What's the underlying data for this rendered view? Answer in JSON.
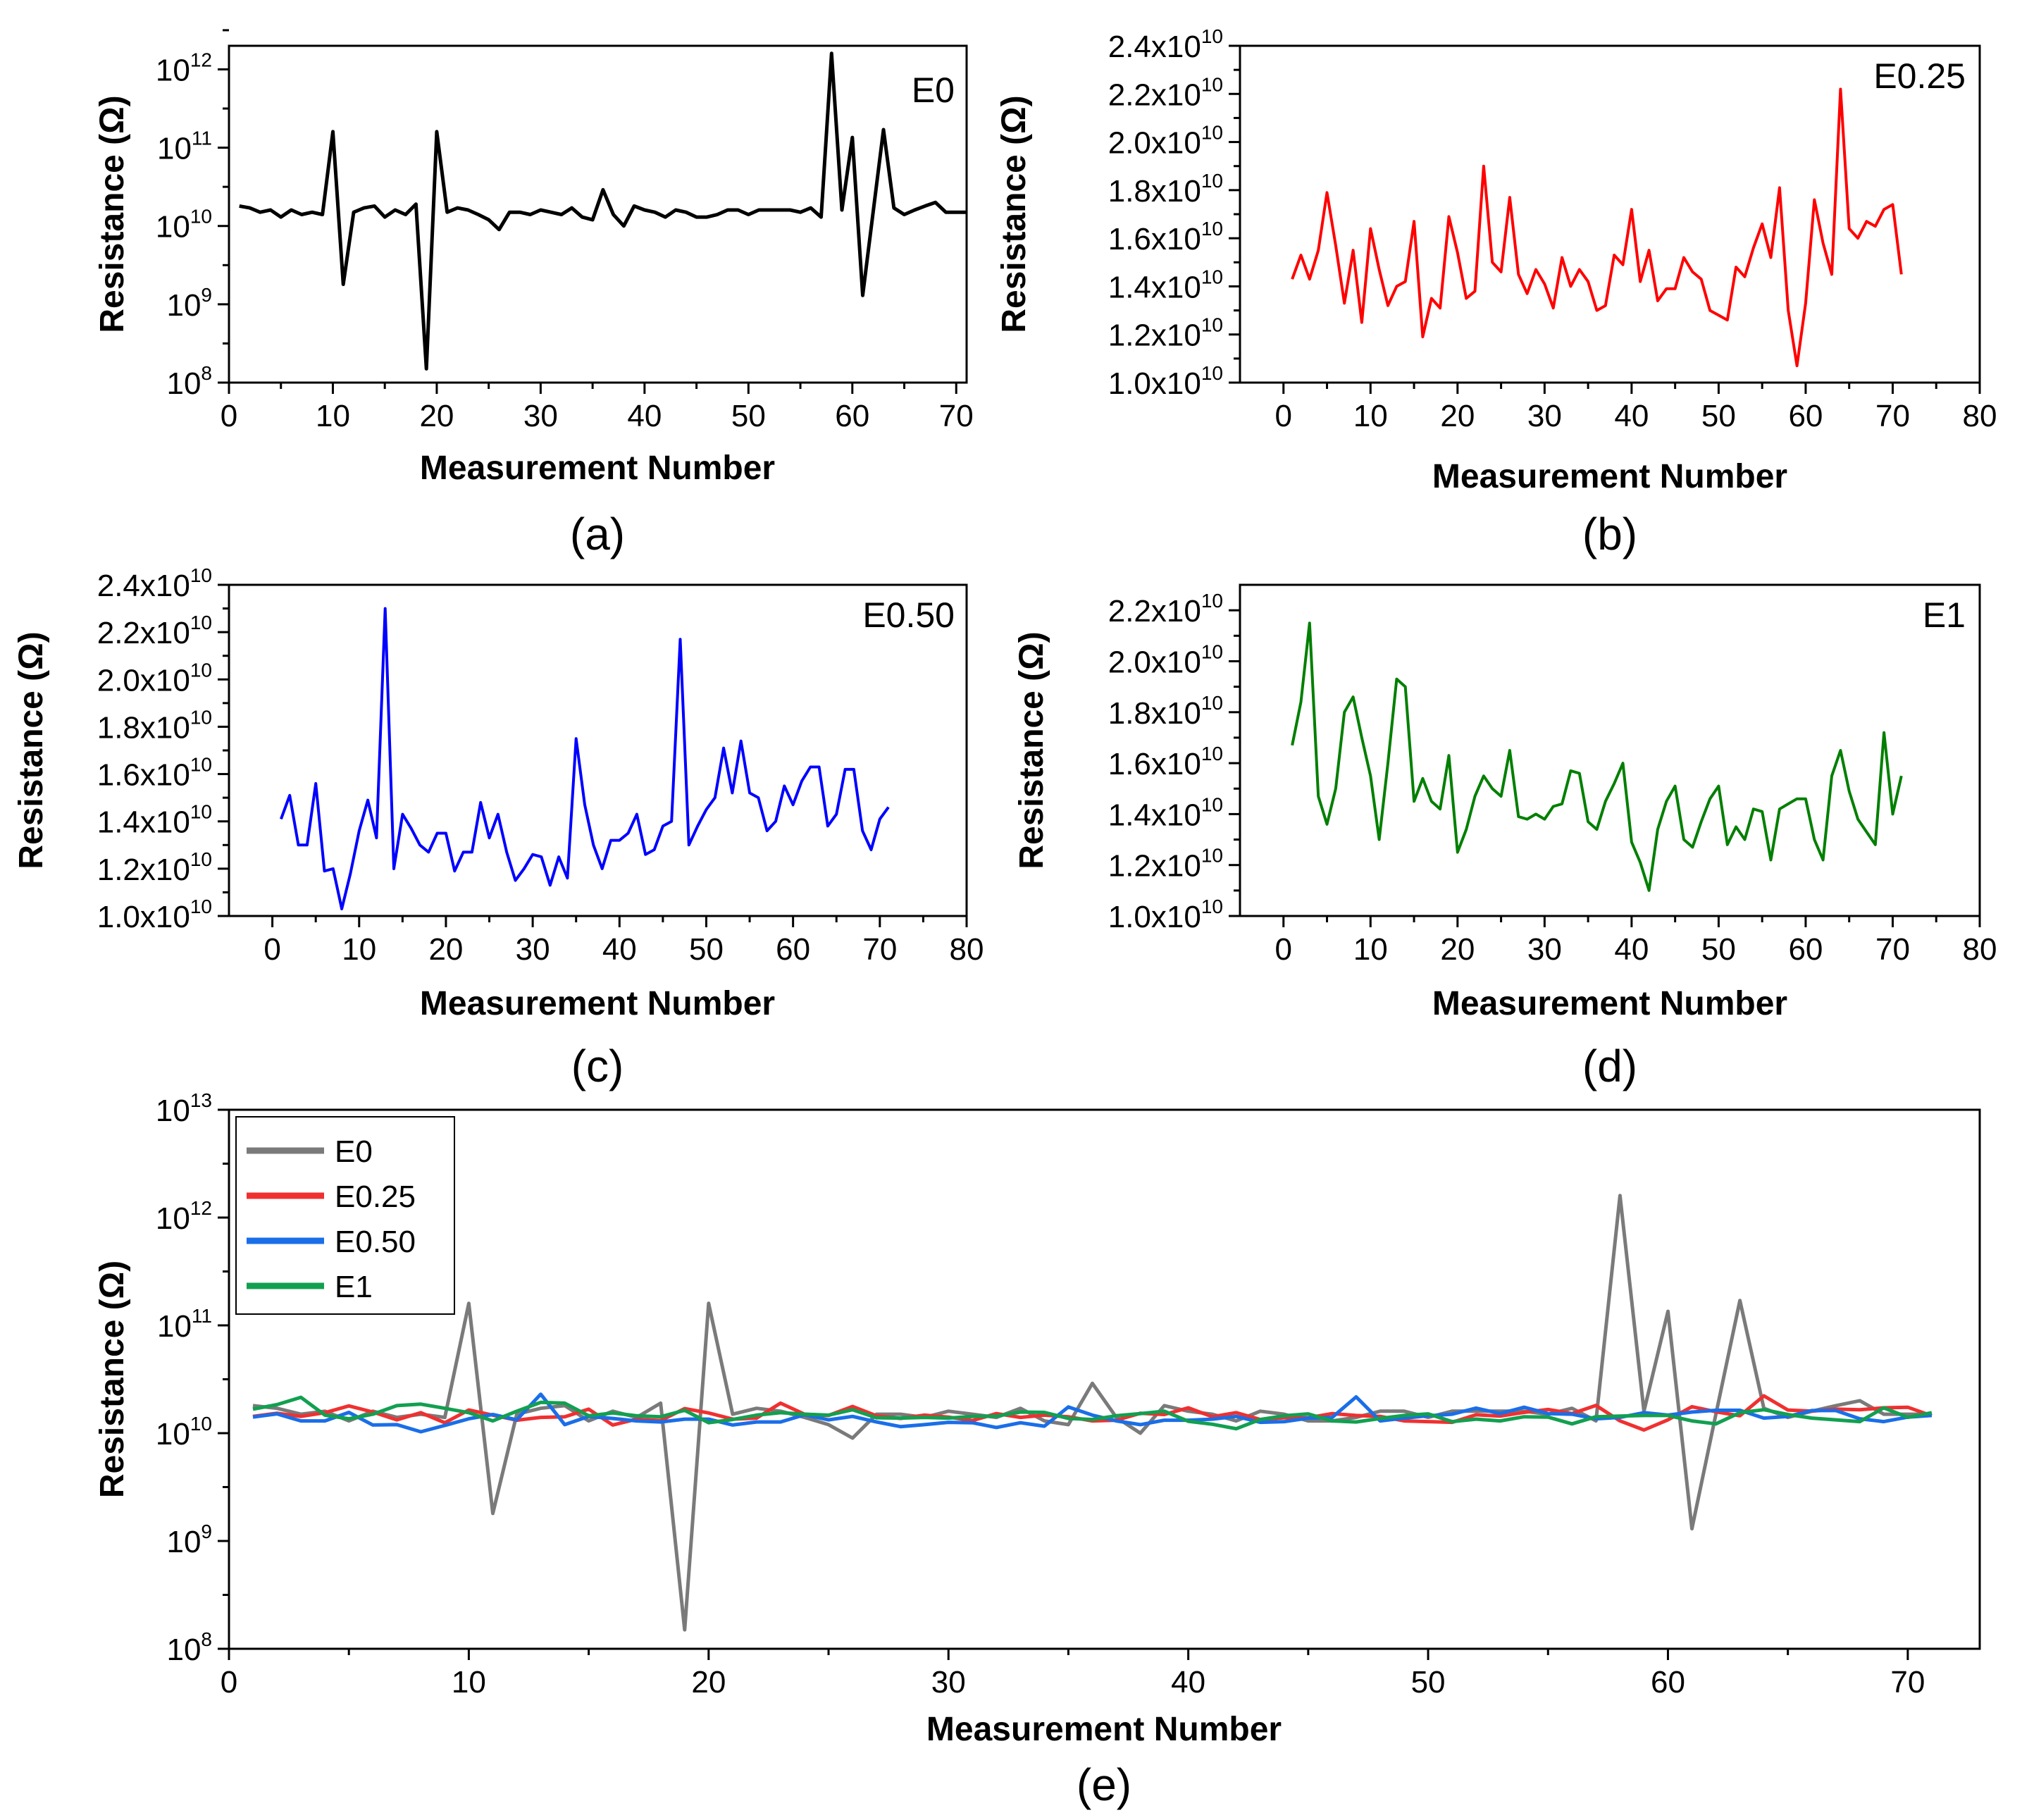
{
  "chart_data": [
    {
      "id": "a",
      "type": "line",
      "panel_label": "(a)",
      "inset_label": "E0",
      "xlabel": "Measurement Number",
      "ylabel": "Resistance (Ω)",
      "xlim": [
        0,
        71
      ],
      "ylim": [
        100000000.0,
        2000000000000.0
      ],
      "yscale": "log",
      "xticks": [
        0,
        10,
        20,
        30,
        40,
        50,
        60,
        70
      ],
      "yticks": [
        {
          "base": "10",
          "exp": "8",
          "value": 100000000.0
        },
        {
          "base": "10",
          "exp": "9",
          "value": 1000000000.0
        },
        {
          "base": "10",
          "exp": "10",
          "value": 10000000000.0
        },
        {
          "base": "10",
          "exp": "11",
          "value": 100000000000.0
        },
        {
          "base": "10",
          "exp": "12",
          "value": 1000000000000.0
        }
      ],
      "series": [
        {
          "color": "#000000",
          "x": [
            1,
            2,
            3,
            4,
            5,
            6,
            7,
            8,
            9,
            10,
            11,
            12,
            13,
            14,
            15,
            16,
            17,
            18,
            19,
            20,
            21,
            22,
            23,
            24,
            25,
            26,
            27,
            28,
            29,
            30,
            31,
            32,
            33,
            34,
            35,
            36,
            37,
            38,
            39,
            40,
            41,
            42,
            43,
            44,
            45,
            46,
            47,
            48,
            49,
            50,
            51,
            52,
            53,
            54,
            55,
            56,
            57,
            58,
            59,
            60,
            61,
            62,
            63,
            64,
            65,
            66,
            67,
            68,
            69,
            70,
            71
          ],
          "y": [
            18000000000.0,
            17000000000.0,
            15000000000.0,
            16000000000.0,
            13000000000.0,
            16000000000.0,
            14000000000.0,
            15000000000.0,
            14000000000.0,
            160000000000.0,
            1800000000.0,
            15000000000.0,
            17000000000.0,
            18000000000.0,
            13000000000.0,
            16000000000.0,
            14000000000.0,
            19000000000.0,
            150000000.0,
            160000000000.0,
            15000000000.0,
            17000000000.0,
            16000000000.0,
            14000000000.0,
            12000000000.0,
            9000000000.0,
            15000000000.0,
            15000000000.0,
            14000000000.0,
            16000000000.0,
            15000000000.0,
            14000000000.0,
            17000000000.0,
            13000000000.0,
            12000000000.0,
            29000000000.0,
            14000000000.0,
            10000000000.0,
            18000000000.0,
            16000000000.0,
            15000000000.0,
            13000000000.0,
            16000000000.0,
            15000000000.0,
            13000000000.0,
            13000000000.0,
            14000000000.0,
            16000000000.0,
            16000000000.0,
            14000000000.0,
            16000000000.0,
            16000000000.0,
            16000000000.0,
            16000000000.0,
            15000000000.0,
            17000000000.0,
            13000000000.0,
            1600000000000.0,
            16000000000.0,
            135000000000.0,
            1300000000.0,
            15000000000.0,
            170000000000.0,
            17000000000.0,
            14000000000.0,
            16000000000.0,
            18000000000.0,
            20000000000.0,
            15000000000.0,
            15000000000.0,
            15000000000.0
          ]
        }
      ]
    },
    {
      "id": "b",
      "type": "line",
      "panel_label": "(b)",
      "inset_label": "E0.25",
      "xlabel": "Measurement Number",
      "ylabel": "Resistance (Ω)",
      "xlim": [
        -5,
        80
      ],
      "ylim": [
        10000000000.0,
        24000000000.0
      ],
      "yscale": "linear",
      "xticks": [
        0,
        10,
        20,
        30,
        40,
        50,
        60,
        70,
        80
      ],
      "yticks": [
        {
          "mant": "1.0x10",
          "exp": "10",
          "value": 10000000000.0
        },
        {
          "mant": "1.2x10",
          "exp": "10",
          "value": 12000000000.0
        },
        {
          "mant": "1.4x10",
          "exp": "10",
          "value": 14000000000.0
        },
        {
          "mant": "1.6x10",
          "exp": "10",
          "value": 16000000000.0
        },
        {
          "mant": "1.8x10",
          "exp": "10",
          "value": 18000000000.0
        },
        {
          "mant": "2.0x10",
          "exp": "10",
          "value": 20000000000.0
        },
        {
          "mant": "2.2x10",
          "exp": "10",
          "value": 22000000000.0
        },
        {
          "mant": "2.4x10",
          "exp": "10",
          "value": 24000000000.0
        }
      ],
      "series": [
        {
          "color": "#ff0000",
          "x": [
            1,
            2,
            3,
            4,
            5,
            6,
            7,
            8,
            9,
            10,
            11,
            12,
            13,
            14,
            15,
            16,
            17,
            18,
            19,
            20,
            21,
            22,
            23,
            24,
            25,
            26,
            27,
            28,
            29,
            30,
            31,
            32,
            33,
            34,
            35,
            36,
            37,
            38,
            39,
            40,
            41,
            42,
            43,
            44,
            45,
            46,
            47,
            48,
            49,
            50,
            51,
            52,
            53,
            54,
            55,
            56,
            57,
            58,
            59,
            60,
            61,
            62,
            63,
            64,
            65,
            66,
            67,
            68,
            69,
            70,
            71
          ],
          "y": [
            14300000000.0,
            15300000000.0,
            14300000000.0,
            15500000000.0,
            17900000000.0,
            15700000000.0,
            13300000000.0,
            15500000000.0,
            12500000000.0,
            16400000000.0,
            14700000000.0,
            13200000000.0,
            14000000000.0,
            14200000000.0,
            16700000000.0,
            11900000000.0,
            13500000000.0,
            13100000000.0,
            16900000000.0,
            15400000000.0,
            13500000000.0,
            13800000000.0,
            19000000000.0,
            15000000000.0,
            14600000000.0,
            17700000000.0,
            14500000000.0,
            13700000000.0,
            14700000000.0,
            14100000000.0,
            13100000000.0,
            15200000000.0,
            14000000000.0,
            14700000000.0,
            14200000000.0,
            13000000000.0,
            13200000000.0,
            15300000000.0,
            14900000000.0,
            17200000000.0,
            14200000000.0,
            15500000000.0,
            13400000000.0,
            13900000000.0,
            13900000000.0,
            15200000000.0,
            14600000000.0,
            14300000000.0,
            13000000000.0,
            12800000000.0,
            12600000000.0,
            14800000000.0,
            14400000000.0,
            15600000000.0,
            16600000000.0,
            15200000000.0,
            18100000000.0,
            13000000000.0,
            10700000000.0,
            13300000000.0,
            17600000000.0,
            15800000000.0,
            14500000000.0,
            22200000000.0,
            16400000000.0,
            16000000000.0,
            16700000000.0,
            16500000000.0,
            17200000000.0,
            17400000000.0,
            14500000000.0
          ]
        }
      ]
    },
    {
      "id": "c",
      "type": "line",
      "panel_label": "(c)",
      "inset_label": "E0.50",
      "xlabel": "Measurement Number",
      "ylabel": "Resistance (Ω)",
      "xlim": [
        -5,
        80
      ],
      "ylim": [
        10000000000.0,
        24000000000.0
      ],
      "yscale": "linear",
      "xticks": [
        0,
        10,
        20,
        30,
        40,
        50,
        60,
        70,
        80
      ],
      "yticks": [
        {
          "mant": "1.0x10",
          "exp": "10",
          "value": 10000000000.0
        },
        {
          "mant": "1.2x10",
          "exp": "10",
          "value": 12000000000.0
        },
        {
          "mant": "1.4x10",
          "exp": "10",
          "value": 14000000000.0
        },
        {
          "mant": "1.6x10",
          "exp": "10",
          "value": 16000000000.0
        },
        {
          "mant": "1.8x10",
          "exp": "10",
          "value": 18000000000.0
        },
        {
          "mant": "2.0x10",
          "exp": "10",
          "value": 20000000000.0
        },
        {
          "mant": "2.2x10",
          "exp": "10",
          "value": 22000000000.0
        },
        {
          "mant": "2.4x10",
          "exp": "10",
          "value": 24000000000.0
        }
      ],
      "series": [
        {
          "color": "#0000ff",
          "x": [
            1,
            2,
            3,
            4,
            5,
            6,
            7,
            8,
            9,
            10,
            11,
            12,
            13,
            14,
            15,
            16,
            17,
            18,
            19,
            20,
            21,
            22,
            23,
            24,
            25,
            26,
            27,
            28,
            29,
            30,
            31,
            32,
            33,
            34,
            35,
            36,
            37,
            38,
            39,
            40,
            41,
            42,
            43,
            44,
            45,
            46,
            47,
            48,
            49,
            50,
            51,
            52,
            53,
            54,
            55,
            56,
            57,
            58,
            59,
            60,
            61,
            62,
            63,
            64,
            65,
            66,
            67,
            68,
            69,
            70,
            71
          ],
          "y": [
            14100000000.0,
            15100000000.0,
            13000000000.0,
            13000000000.0,
            15600000000.0,
            11900000000.0,
            12000000000.0,
            10300000000.0,
            11800000000.0,
            13600000000.0,
            14900000000.0,
            13300000000.0,
            23000000000.0,
            12000000000.0,
            14300000000.0,
            13700000000.0,
            13000000000.0,
            12700000000.0,
            13500000000.0,
            13500000000.0,
            11900000000.0,
            12700000000.0,
            12700000000.0,
            14800000000.0,
            13300000000.0,
            14300000000.0,
            12700000000.0,
            11500000000.0,
            12000000000.0,
            12600000000.0,
            12500000000.0,
            11300000000.0,
            12500000000.0,
            11600000000.0,
            17500000000.0,
            14700000000.0,
            13000000000.0,
            12000000000.0,
            13200000000.0,
            13200000000.0,
            13500000000.0,
            14300000000.0,
            12600000000.0,
            12800000000.0,
            13800000000.0,
            14000000000.0,
            21700000000.0,
            13000000000.0,
            13800000000.0,
            14500000000.0,
            15000000000.0,
            17100000000.0,
            15200000000.0,
            17400000000.0,
            15200000000.0,
            15000000000.0,
            13600000000.0,
            14000000000.0,
            15500000000.0,
            14700000000.0,
            15700000000.0,
            16300000000.0,
            16300000000.0,
            13800000000.0,
            14300000000.0,
            16200000000.0,
            16200000000.0,
            13600000000.0,
            12800000000.0,
            14100000000.0,
            14600000000.0
          ]
        }
      ]
    },
    {
      "id": "d",
      "type": "line",
      "panel_label": "(d)",
      "inset_label": "E1",
      "xlabel": "Measurement Number",
      "ylabel": "Resistance (Ω)",
      "xlim": [
        -5,
        80
      ],
      "ylim": [
        10000000000.0,
        23000000000.0
      ],
      "yscale": "linear",
      "xticks": [
        0,
        10,
        20,
        30,
        40,
        50,
        60,
        70,
        80
      ],
      "yticks": [
        {
          "mant": "1.0x10",
          "exp": "10",
          "value": 10000000000.0
        },
        {
          "mant": "1.2x10",
          "exp": "10",
          "value": 12000000000.0
        },
        {
          "mant": "1.4x10",
          "exp": "10",
          "value": 14000000000.0
        },
        {
          "mant": "1.6x10",
          "exp": "10",
          "value": 16000000000.0
        },
        {
          "mant": "1.8x10",
          "exp": "10",
          "value": 18000000000.0
        },
        {
          "mant": "2.0x10",
          "exp": "10",
          "value": 20000000000.0
        },
        {
          "mant": "2.2x10",
          "exp": "10",
          "value": 22000000000.0
        }
      ],
      "series": [
        {
          "color": "#007f00",
          "x": [
            1,
            2,
            3,
            4,
            5,
            6,
            7,
            8,
            9,
            10,
            11,
            12,
            13,
            14,
            15,
            16,
            17,
            18,
            19,
            20,
            21,
            22,
            23,
            24,
            25,
            26,
            27,
            28,
            29,
            30,
            31,
            32,
            33,
            34,
            35,
            36,
            37,
            38,
            39,
            40,
            41,
            42,
            43,
            44,
            45,
            46,
            47,
            48,
            49,
            50,
            51,
            52,
            53,
            54,
            55,
            56,
            57,
            58,
            59,
            60,
            61,
            62,
            63,
            64,
            65,
            66,
            67,
            68,
            69,
            70,
            71
          ],
          "y": [
            16700000000.0,
            18400000000.0,
            21500000000.0,
            14700000000.0,
            13600000000.0,
            15000000000.0,
            18000000000.0,
            18600000000.0,
            17000000000.0,
            15500000000.0,
            13000000000.0,
            16000000000.0,
            19300000000.0,
            19000000000.0,
            14500000000.0,
            15400000000.0,
            14500000000.0,
            14200000000.0,
            16300000000.0,
            12500000000.0,
            13400000000.0,
            14700000000.0,
            15500000000.0,
            15000000000.0,
            14700000000.0,
            16500000000.0,
            13900000000.0,
            13800000000.0,
            14000000000.0,
            13800000000.0,
            14300000000.0,
            14400000000.0,
            15700000000.0,
            15600000000.0,
            13700000000.0,
            13400000000.0,
            14500000000.0,
            15200000000.0,
            16000000000.0,
            12900000000.0,
            12100000000.0,
            11000000000.0,
            13400000000.0,
            14500000000.0,
            15100000000.0,
            13000000000.0,
            12700000000.0,
            13700000000.0,
            14600000000.0,
            15100000000.0,
            12800000000.0,
            13500000000.0,
            13000000000.0,
            14200000000.0,
            14100000000.0,
            12200000000.0,
            14200000000.0,
            14400000000.0,
            14600000000.0,
            14600000000.0,
            13000000000.0,
            12200000000.0,
            15500000000.0,
            16500000000.0,
            14900000000.0,
            13800000000.0,
            13300000000.0,
            12800000000.0,
            17200000000.0,
            14000000000.0,
            15500000000.0
          ]
        }
      ]
    },
    {
      "id": "e",
      "type": "line",
      "panel_label": "(e)",
      "xlabel": "Measurement Number",
      "ylabel": "Resistance (Ω)",
      "xlim": [
        0,
        73
      ],
      "ylim": [
        100000000.0,
        10000000000000.0
      ],
      "yscale": "log",
      "xticks": [
        0,
        10,
        20,
        30,
        40,
        50,
        60,
        70
      ],
      "yticks": [
        {
          "base": "10",
          "exp": "8",
          "value": 100000000.0
        },
        {
          "base": "10",
          "exp": "9",
          "value": 1000000000.0
        },
        {
          "base": "10",
          "exp": "10",
          "value": 10000000000.0
        },
        {
          "base": "10",
          "exp": "11",
          "value": 100000000000.0
        },
        {
          "base": "10",
          "exp": "12",
          "value": 1000000000000.0
        },
        {
          "base": "10",
          "exp": "13",
          "value": 10000000000000.0
        }
      ],
      "legend_position": "top-left",
      "series": [
        {
          "name": "E0",
          "color": "#7a7a7a",
          "source": 0
        },
        {
          "name": "E0.25",
          "color": "#f03030",
          "source": 1
        },
        {
          "name": "E0.50",
          "color": "#1a6ee8",
          "source": 2
        },
        {
          "name": "E1",
          "color": "#12a050",
          "source": 3
        }
      ]
    }
  ]
}
